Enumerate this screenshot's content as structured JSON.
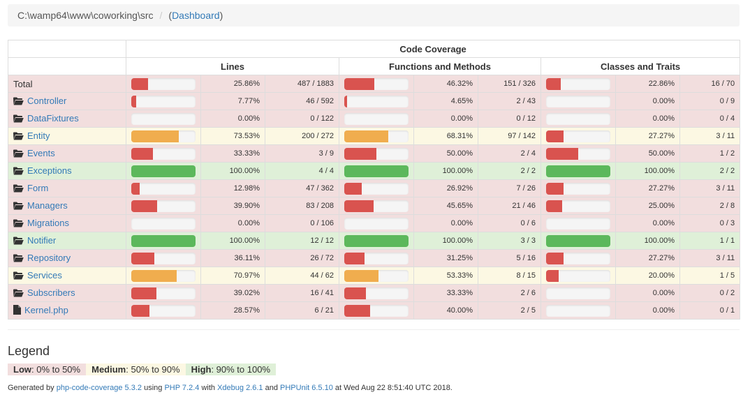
{
  "breadcrumb": {
    "path": "C:\\wamp64\\www\\coworking\\src",
    "separator": "/",
    "open_paren": "(",
    "dashboard": "Dashboard",
    "close_paren": ")"
  },
  "table": {
    "header_group": "Code Coverage",
    "headers": [
      "Lines",
      "Functions and Methods",
      "Classes and Traits"
    ],
    "rows": [
      {
        "name": "Total",
        "type": "total",
        "level": "danger",
        "lines": {
          "pct": 25.86,
          "pct_text": "25.86%",
          "ratio": "487 / 1883",
          "level": "danger"
        },
        "funcs": {
          "pct": 46.32,
          "pct_text": "46.32%",
          "ratio": "151 / 326",
          "level": "danger"
        },
        "classes": {
          "pct": 22.86,
          "pct_text": "22.86%",
          "ratio": "16 / 70",
          "level": "danger"
        }
      },
      {
        "name": "Controller",
        "type": "folder",
        "level": "danger",
        "lines": {
          "pct": 7.77,
          "pct_text": "7.77%",
          "ratio": "46 / 592",
          "level": "danger"
        },
        "funcs": {
          "pct": 4.65,
          "pct_text": "4.65%",
          "ratio": "2 / 43",
          "level": "danger"
        },
        "classes": {
          "pct": 0,
          "pct_text": "0.00%",
          "ratio": "0 / 9",
          "level": "danger"
        }
      },
      {
        "name": "DataFixtures",
        "type": "folder",
        "level": "danger",
        "lines": {
          "pct": 0,
          "pct_text": "0.00%",
          "ratio": "0 / 122",
          "level": "danger"
        },
        "funcs": {
          "pct": 0,
          "pct_text": "0.00%",
          "ratio": "0 / 12",
          "level": "danger"
        },
        "classes": {
          "pct": 0,
          "pct_text": "0.00%",
          "ratio": "0 / 4",
          "level": "danger"
        }
      },
      {
        "name": "Entity",
        "type": "folder",
        "level": "warning",
        "lines": {
          "pct": 73.53,
          "pct_text": "73.53%",
          "ratio": "200 / 272",
          "level": "warning"
        },
        "funcs": {
          "pct": 68.31,
          "pct_text": "68.31%",
          "ratio": "97 / 142",
          "level": "warning"
        },
        "classes": {
          "pct": 27.27,
          "pct_text": "27.27%",
          "ratio": "3 / 11",
          "level": "danger"
        }
      },
      {
        "name": "Events",
        "type": "folder",
        "level": "danger",
        "lines": {
          "pct": 33.33,
          "pct_text": "33.33%",
          "ratio": "3 / 9",
          "level": "danger"
        },
        "funcs": {
          "pct": 50.0,
          "pct_text": "50.00%",
          "ratio": "2 / 4",
          "level": "danger"
        },
        "classes": {
          "pct": 50.0,
          "pct_text": "50.00%",
          "ratio": "1 / 2",
          "level": "danger"
        }
      },
      {
        "name": "Exceptions",
        "type": "folder",
        "level": "success",
        "lines": {
          "pct": 100,
          "pct_text": "100.00%",
          "ratio": "4 / 4",
          "level": "success"
        },
        "funcs": {
          "pct": 100,
          "pct_text": "100.00%",
          "ratio": "2 / 2",
          "level": "success"
        },
        "classes": {
          "pct": 100,
          "pct_text": "100.00%",
          "ratio": "2 / 2",
          "level": "success"
        }
      },
      {
        "name": "Form",
        "type": "folder",
        "level": "danger",
        "lines": {
          "pct": 12.98,
          "pct_text": "12.98%",
          "ratio": "47 / 362",
          "level": "danger"
        },
        "funcs": {
          "pct": 26.92,
          "pct_text": "26.92%",
          "ratio": "7 / 26",
          "level": "danger"
        },
        "classes": {
          "pct": 27.27,
          "pct_text": "27.27%",
          "ratio": "3 / 11",
          "level": "danger"
        }
      },
      {
        "name": "Managers",
        "type": "folder",
        "level": "danger",
        "lines": {
          "pct": 39.9,
          "pct_text": "39.90%",
          "ratio": "83 / 208",
          "level": "danger"
        },
        "funcs": {
          "pct": 45.65,
          "pct_text": "45.65%",
          "ratio": "21 / 46",
          "level": "danger"
        },
        "classes": {
          "pct": 25.0,
          "pct_text": "25.00%",
          "ratio": "2 / 8",
          "level": "danger"
        }
      },
      {
        "name": "Migrations",
        "type": "folder",
        "level": "danger",
        "lines": {
          "pct": 0,
          "pct_text": "0.00%",
          "ratio": "0 / 106",
          "level": "danger"
        },
        "funcs": {
          "pct": 0,
          "pct_text": "0.00%",
          "ratio": "0 / 6",
          "level": "danger"
        },
        "classes": {
          "pct": 0,
          "pct_text": "0.00%",
          "ratio": "0 / 3",
          "level": "danger"
        }
      },
      {
        "name": "Notifier",
        "type": "folder",
        "level": "success",
        "lines": {
          "pct": 100,
          "pct_text": "100.00%",
          "ratio": "12 / 12",
          "level": "success"
        },
        "funcs": {
          "pct": 100,
          "pct_text": "100.00%",
          "ratio": "3 / 3",
          "level": "success"
        },
        "classes": {
          "pct": 100,
          "pct_text": "100.00%",
          "ratio": "1 / 1",
          "level": "success"
        }
      },
      {
        "name": "Repository",
        "type": "folder",
        "level": "danger",
        "lines": {
          "pct": 36.11,
          "pct_text": "36.11%",
          "ratio": "26 / 72",
          "level": "danger"
        },
        "funcs": {
          "pct": 31.25,
          "pct_text": "31.25%",
          "ratio": "5 / 16",
          "level": "danger"
        },
        "classes": {
          "pct": 27.27,
          "pct_text": "27.27%",
          "ratio": "3 / 11",
          "level": "danger"
        }
      },
      {
        "name": "Services",
        "type": "folder",
        "level": "warning",
        "lines": {
          "pct": 70.97,
          "pct_text": "70.97%",
          "ratio": "44 / 62",
          "level": "warning"
        },
        "funcs": {
          "pct": 53.33,
          "pct_text": "53.33%",
          "ratio": "8 / 15",
          "level": "warning"
        },
        "classes": {
          "pct": 20.0,
          "pct_text": "20.00%",
          "ratio": "1 / 5",
          "level": "danger"
        }
      },
      {
        "name": "Subscribers",
        "type": "folder",
        "level": "danger",
        "lines": {
          "pct": 39.02,
          "pct_text": "39.02%",
          "ratio": "16 / 41",
          "level": "danger"
        },
        "funcs": {
          "pct": 33.33,
          "pct_text": "33.33%",
          "ratio": "2 / 6",
          "level": "danger"
        },
        "classes": {
          "pct": 0,
          "pct_text": "0.00%",
          "ratio": "0 / 2",
          "level": "danger"
        }
      },
      {
        "name": "Kernel.php",
        "type": "file",
        "level": "danger",
        "lines": {
          "pct": 28.57,
          "pct_text": "28.57%",
          "ratio": "6 / 21",
          "level": "danger"
        },
        "funcs": {
          "pct": 40.0,
          "pct_text": "40.00%",
          "ratio": "2 / 5",
          "level": "danger"
        },
        "classes": {
          "pct": 0,
          "pct_text": "0.00%",
          "ratio": "0 / 1",
          "level": "danger"
        }
      }
    ]
  },
  "legend": {
    "title": "Legend",
    "low_label": "Low",
    "low_range": ": 0% to 50%",
    "medium_label": "Medium",
    "medium_range": ": 50% to 90%",
    "high_label": "High",
    "high_range": ": 90% to 100%"
  },
  "footer": {
    "prefix": "Generated by ",
    "tool": "php-code-coverage 5.3.2",
    "using": " using ",
    "php": "PHP 7.2.4",
    "with": " with ",
    "xdebug": "Xdebug 2.6.1",
    "and": " and ",
    "phpunit": "PHPUnit 6.5.10",
    "at": " at Wed Aug 22 8:51:40 UTC 2018."
  },
  "colors": {
    "danger_row": "#f2dede",
    "warning_row": "#fcf8e3",
    "success_row": "#dff0d8",
    "danger_bar": "#d9534f",
    "warning_bar": "#f0ad4e",
    "success_bar": "#5cb85c",
    "link": "#337ab7"
  }
}
